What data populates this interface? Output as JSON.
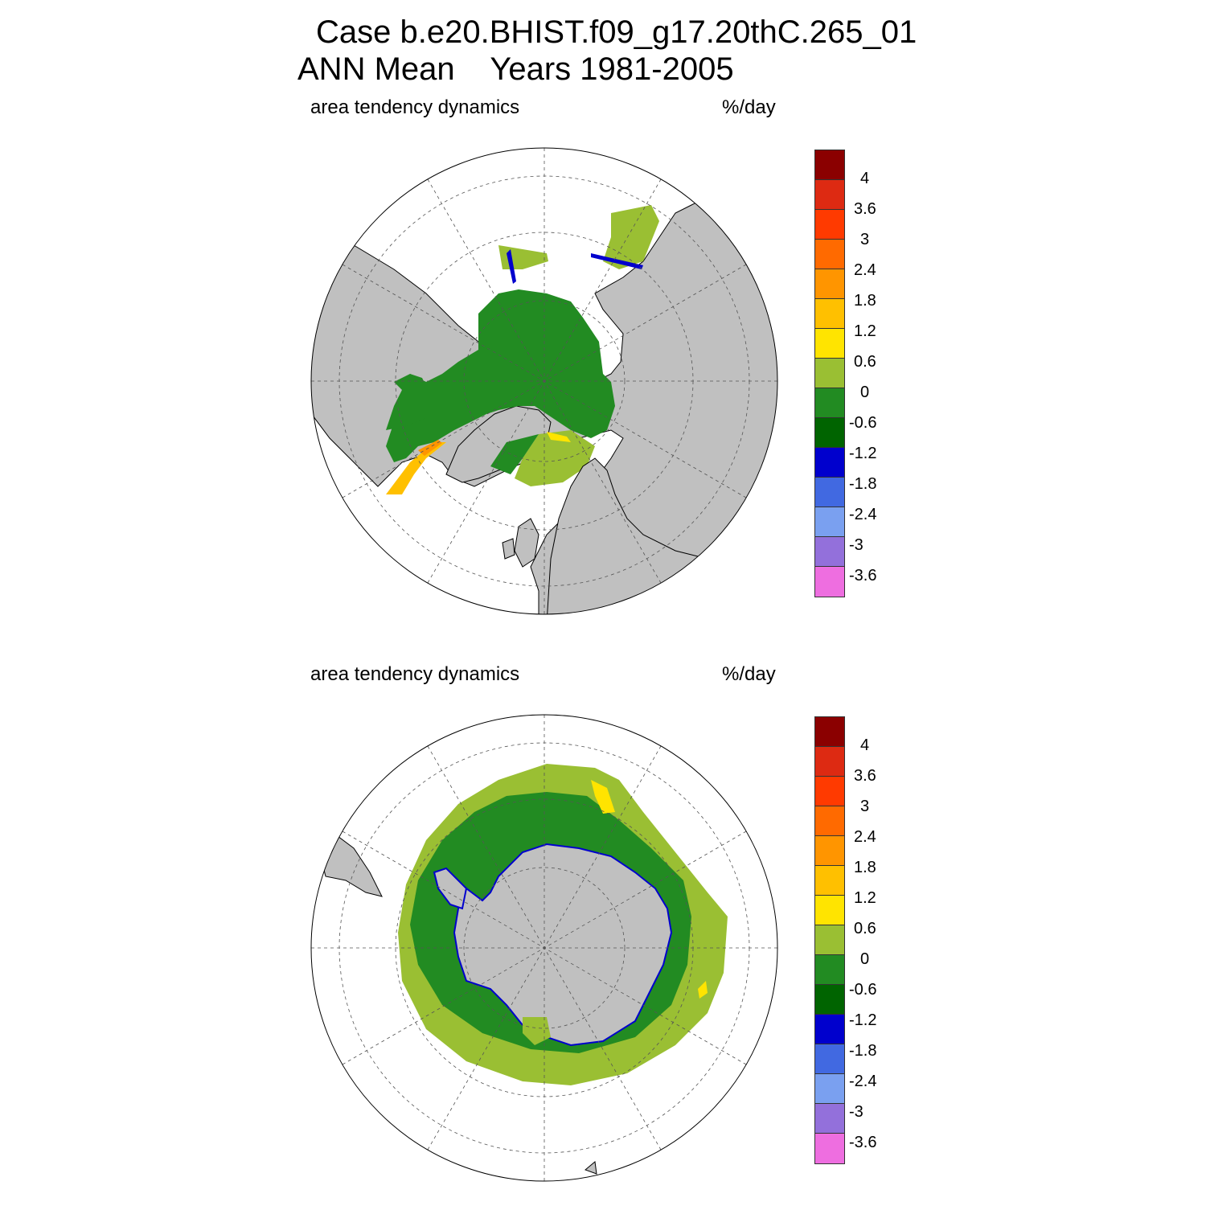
{
  "title_line1": "Case b.e20.BHIST.f09_g17.20thC.265_01",
  "title_line2": "ANN Mean    Years 1981-2005",
  "panels": [
    {
      "id": "north",
      "left_label": "area tendency dynamics",
      "right_label": "%/day"
    },
    {
      "id": "south",
      "left_label": "area tendency dynamics",
      "right_label": "%/day"
    }
  ],
  "colorbar": {
    "colors": [
      "#8b0000",
      "#dd2a12",
      "#ff3a00",
      "#ff6a00",
      "#ff9500",
      "#ffc000",
      "#ffe400",
      "#9abf33",
      "#228b22",
      "#006400",
      "#0000cd",
      "#4169e1",
      "#7aa0f0",
      "#9370db",
      "#ee6ee0"
    ],
    "labels": [
      "4",
      "3.6",
      "3",
      "2.4",
      "1.8",
      "1.2",
      "0.6",
      "0",
      "-0.6",
      "-1.2",
      "-1.8",
      "-2.4",
      "-3",
      "-3.6"
    ]
  },
  "map_colors": {
    "land": "#c0c0c0",
    "ocean": "#ffffff",
    "grid": "#555555"
  }
}
